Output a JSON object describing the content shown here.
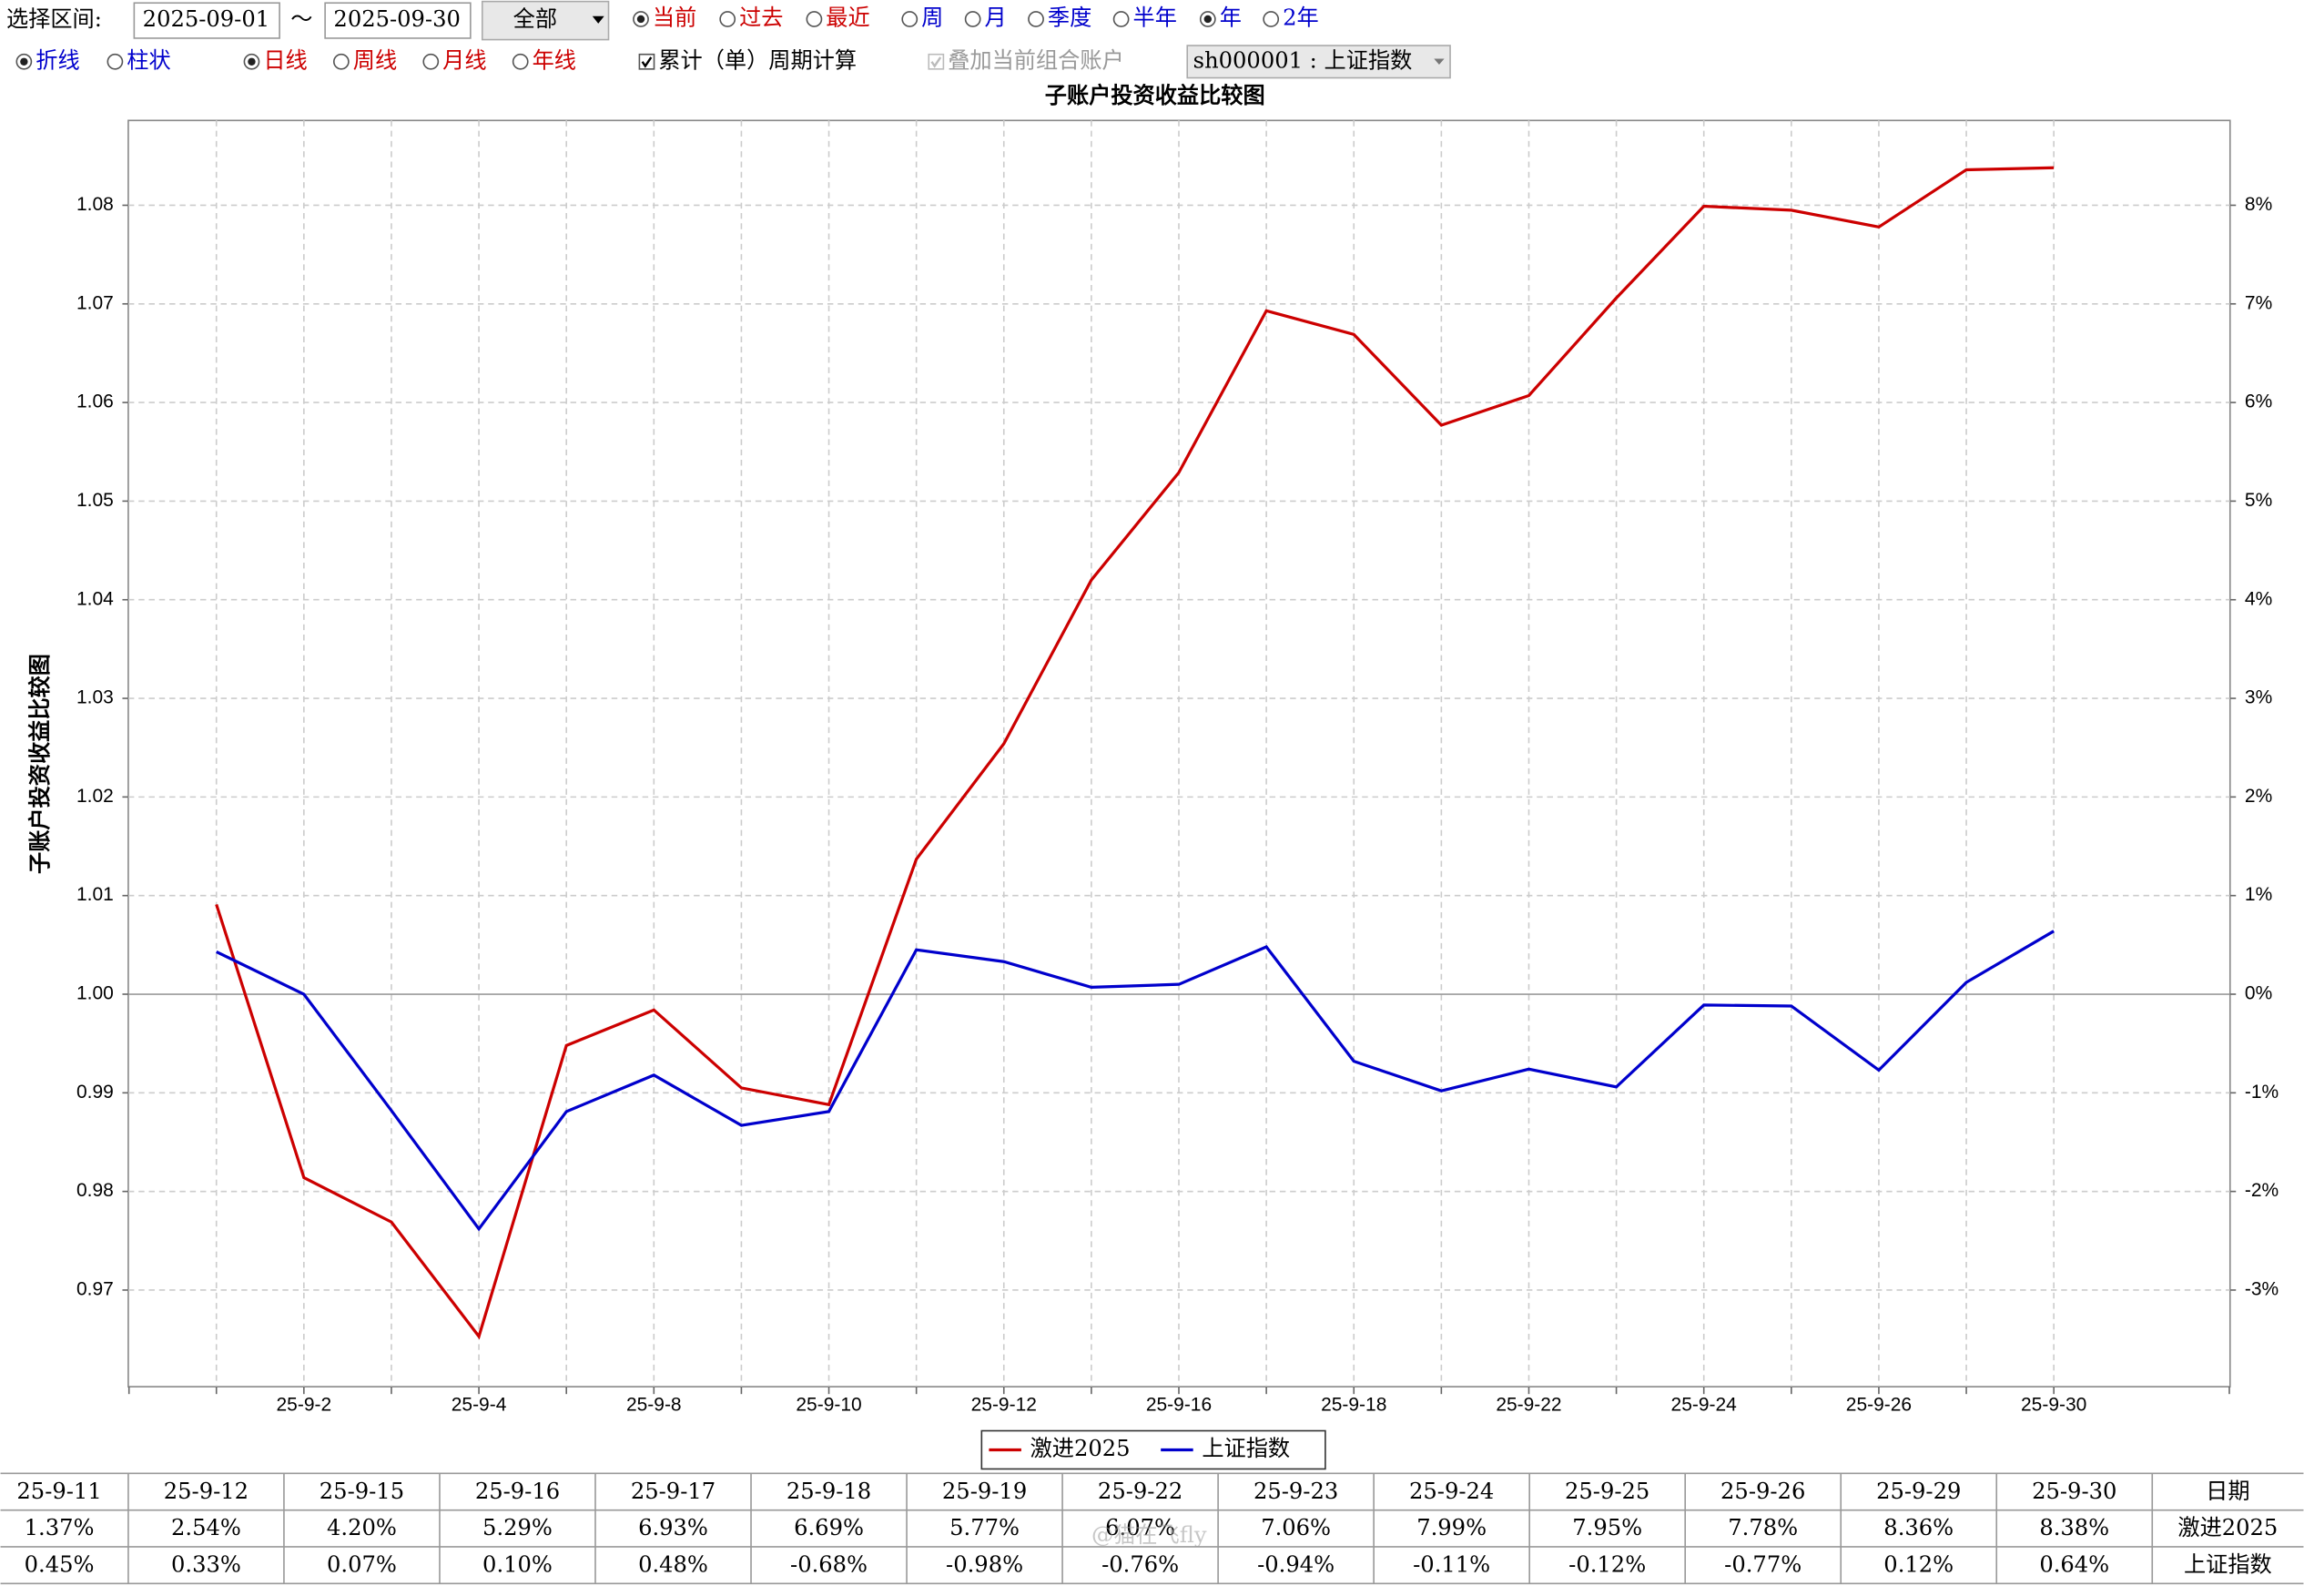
{
  "controls": {
    "range_label": "选择区间:",
    "start_date": "2025-09-01",
    "tilde": "～",
    "end_date": "2025-09-30",
    "scope": "全部",
    "row1_radios": [
      {
        "label": "当前",
        "checked": true,
        "color": "#cc0000"
      },
      {
        "label": "过去",
        "checked": false,
        "color": "#cc0000"
      },
      {
        "label": "最近",
        "checked": false,
        "color": "#cc0000"
      },
      {
        "label": "周",
        "checked": false,
        "color": "#0000cc"
      },
      {
        "label": "月",
        "checked": false,
        "color": "#0000cc"
      },
      {
        "label": "季度",
        "checked": false,
        "color": "#0000cc"
      },
      {
        "label": "半年",
        "checked": false,
        "color": "#0000cc"
      },
      {
        "label": "年",
        "checked": true,
        "color": "#0000cc"
      },
      {
        "label": "2年",
        "checked": false,
        "color": "#0000cc"
      }
    ],
    "chart_radios": [
      {
        "label": "折线",
        "checked": true,
        "color": "#0000cc"
      },
      {
        "label": "柱状",
        "checked": false,
        "color": "#0000cc"
      }
    ],
    "line_radios": [
      {
        "label": "日线",
        "checked": true,
        "color": "#cc0000"
      },
      {
        "label": "周线",
        "checked": false,
        "color": "#cc0000"
      },
      {
        "label": "月线",
        "checked": false,
        "color": "#cc0000"
      },
      {
        "label": "年线",
        "checked": false,
        "color": "#cc0000"
      }
    ],
    "cumulative": {
      "label": "累计（单）周期计算",
      "checked": true
    },
    "overlay": {
      "label": "叠加当前组合账户",
      "checked": true
    },
    "index_select": "sh000001 : 上证指数"
  },
  "chart_data": {
    "type": "line",
    "title": "子账户投资收益比较图",
    "ylabel": "子账户投资收益比较图",
    "categories": [
      null,
      "25-9-2",
      null,
      "25-9-4",
      null,
      "25-9-8",
      null,
      "25-9-10",
      null,
      "25-9-12",
      null,
      "25-9-16",
      null,
      "25-9-18",
      null,
      "25-9-22",
      null,
      "25-9-24",
      null,
      "25-9-26",
      null,
      "25-9-30"
    ],
    "series": [
      {
        "name": "激进2025",
        "color": "#cc0000",
        "values": [
          1.0091,
          0.9814,
          0.9769,
          0.9653,
          0.9948,
          0.9984,
          0.9905,
          0.9888,
          1.0137,
          1.0254,
          1.042,
          1.0529,
          1.0693,
          1.0669,
          1.0577,
          1.0607,
          1.0706,
          1.0799,
          1.0795,
          1.0778,
          1.0836,
          1.0838
        ]
      },
      {
        "name": "上证指数",
        "color": "#0000cc",
        "values": [
          1.0043,
          1.0,
          0.9882,
          0.9762,
          0.9881,
          0.9918,
          0.9867,
          0.9881,
          1.0045,
          1.0033,
          1.0007,
          1.001,
          1.0048,
          0.9932,
          0.9902,
          0.9924,
          0.9906,
          0.9989,
          0.9988,
          0.9923,
          1.0012,
          1.0064
        ]
      }
    ],
    "ylim": [
      0.9602,
      1.0886
    ],
    "yticks": [
      {
        "value": 0.97,
        "label": "0.97"
      },
      {
        "value": 0.98,
        "label": "0.98"
      },
      {
        "value": 0.99,
        "label": "0.99"
      },
      {
        "value": 1.0,
        "label": "1.00"
      },
      {
        "value": 1.01,
        "label": "1.01"
      },
      {
        "value": 1.02,
        "label": "1.02"
      },
      {
        "value": 1.03,
        "label": "1.03"
      },
      {
        "value": 1.04,
        "label": "1.04"
      },
      {
        "value": 1.05,
        "label": "1.05"
      },
      {
        "value": 1.06,
        "label": "1.06"
      },
      {
        "value": 1.07,
        "label": "1.07"
      },
      {
        "value": 1.08,
        "label": "1.08"
      }
    ],
    "y2lim": [
      -3.98,
      8.86
    ],
    "y2ticks": [
      {
        "value": -3,
        "label": "-3%"
      },
      {
        "value": -2,
        "label": "-2%"
      },
      {
        "value": -1,
        "label": "-1%"
      },
      {
        "value": 0,
        "label": "0%"
      },
      {
        "value": 1,
        "label": "1%"
      },
      {
        "value": 2,
        "label": "2%"
      },
      {
        "value": 3,
        "label": "3%"
      },
      {
        "value": 4,
        "label": "4%"
      },
      {
        "value": 5,
        "label": "5%"
      },
      {
        "value": 6,
        "label": "6%"
      },
      {
        "value": 7,
        "label": "7%"
      },
      {
        "value": 8,
        "label": "8%"
      }
    ],
    "grid": true
  },
  "table": {
    "header": [
      "25-9-11",
      "25-9-12",
      "25-9-15",
      "25-9-16",
      "25-9-17",
      "25-9-18",
      "25-9-19",
      "25-9-22",
      "25-9-23",
      "25-9-24",
      "25-9-25",
      "25-9-26",
      "25-9-29",
      "25-9-30",
      "日期"
    ],
    "rows": [
      [
        "1.37%",
        "2.54%",
        "4.20%",
        "5.29%",
        "6.93%",
        "6.69%",
        "5.77%",
        "6.07%",
        "7.06%",
        "7.99%",
        "7.95%",
        "7.78%",
        "8.36%",
        "8.38%",
        "激进2025"
      ],
      [
        "0.45%",
        "0.33%",
        "0.07%",
        "0.10%",
        "0.48%",
        "-0.68%",
        "-0.98%",
        "-0.76%",
        "-0.94%",
        "-0.11%",
        "-0.12%",
        "-0.77%",
        "0.12%",
        "0.64%",
        "上证指数"
      ]
    ]
  },
  "watermark": "@猫在飞fly"
}
